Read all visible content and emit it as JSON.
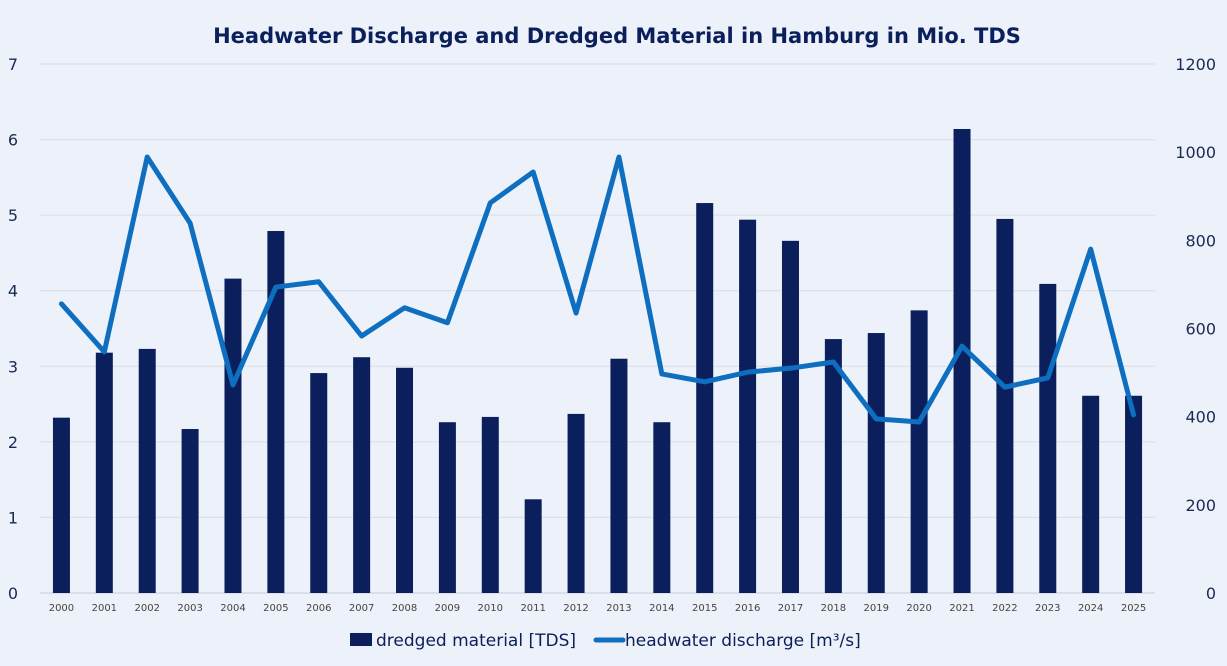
{
  "chart_data": {
    "type": "bar+line",
    "title": "Headwater Discharge and Dredged Material in Hamburg in Mio. TDS",
    "categories": [
      "2000",
      "2001",
      "2002",
      "2003",
      "2004",
      "2005",
      "2006",
      "2007",
      "2008",
      "2009",
      "2010",
      "2011",
      "2012",
      "2013",
      "2014",
      "2015",
      "2016",
      "2017",
      "2018",
      "2019",
      "2020",
      "2021",
      "2022",
      "2023",
      "2024",
      "2025"
    ],
    "series": [
      {
        "name": "dredged material [TDS]",
        "type": "bar",
        "axis": "left",
        "color": "#0b1f5c",
        "values": [
          2.32,
          3.18,
          3.23,
          2.17,
          4.16,
          4.79,
          2.91,
          3.12,
          2.98,
          2.26,
          2.33,
          1.24,
          2.37,
          3.1,
          2.26,
          5.16,
          4.94,
          4.66,
          3.36,
          3.44,
          3.74,
          6.14,
          4.95,
          4.09,
          2.61,
          2.61
        ]
      },
      {
        "name": "headwater discharge [m³/s]",
        "type": "line",
        "axis": "right",
        "color": "#0e6fc0",
        "values": [
          656,
          547,
          989,
          839,
          472,
          694,
          706,
          583,
          647,
          613,
          885,
          955,
          635,
          989,
          497,
          479,
          501,
          510,
          524,
          395,
          388,
          560,
          467,
          488,
          780,
          404
        ]
      }
    ],
    "y_left": {
      "range": [
        0,
        7
      ],
      "ticks": [
        "0",
        "1",
        "2",
        "3",
        "4",
        "5",
        "6",
        "7"
      ]
    },
    "y_right": {
      "range": [
        0,
        1200
      ],
      "ticks": [
        "0",
        "200",
        "400",
        "600",
        "800",
        "1000",
        "1200"
      ]
    },
    "grid": true,
    "legend": "bottom",
    "background": "#edf1f9"
  }
}
